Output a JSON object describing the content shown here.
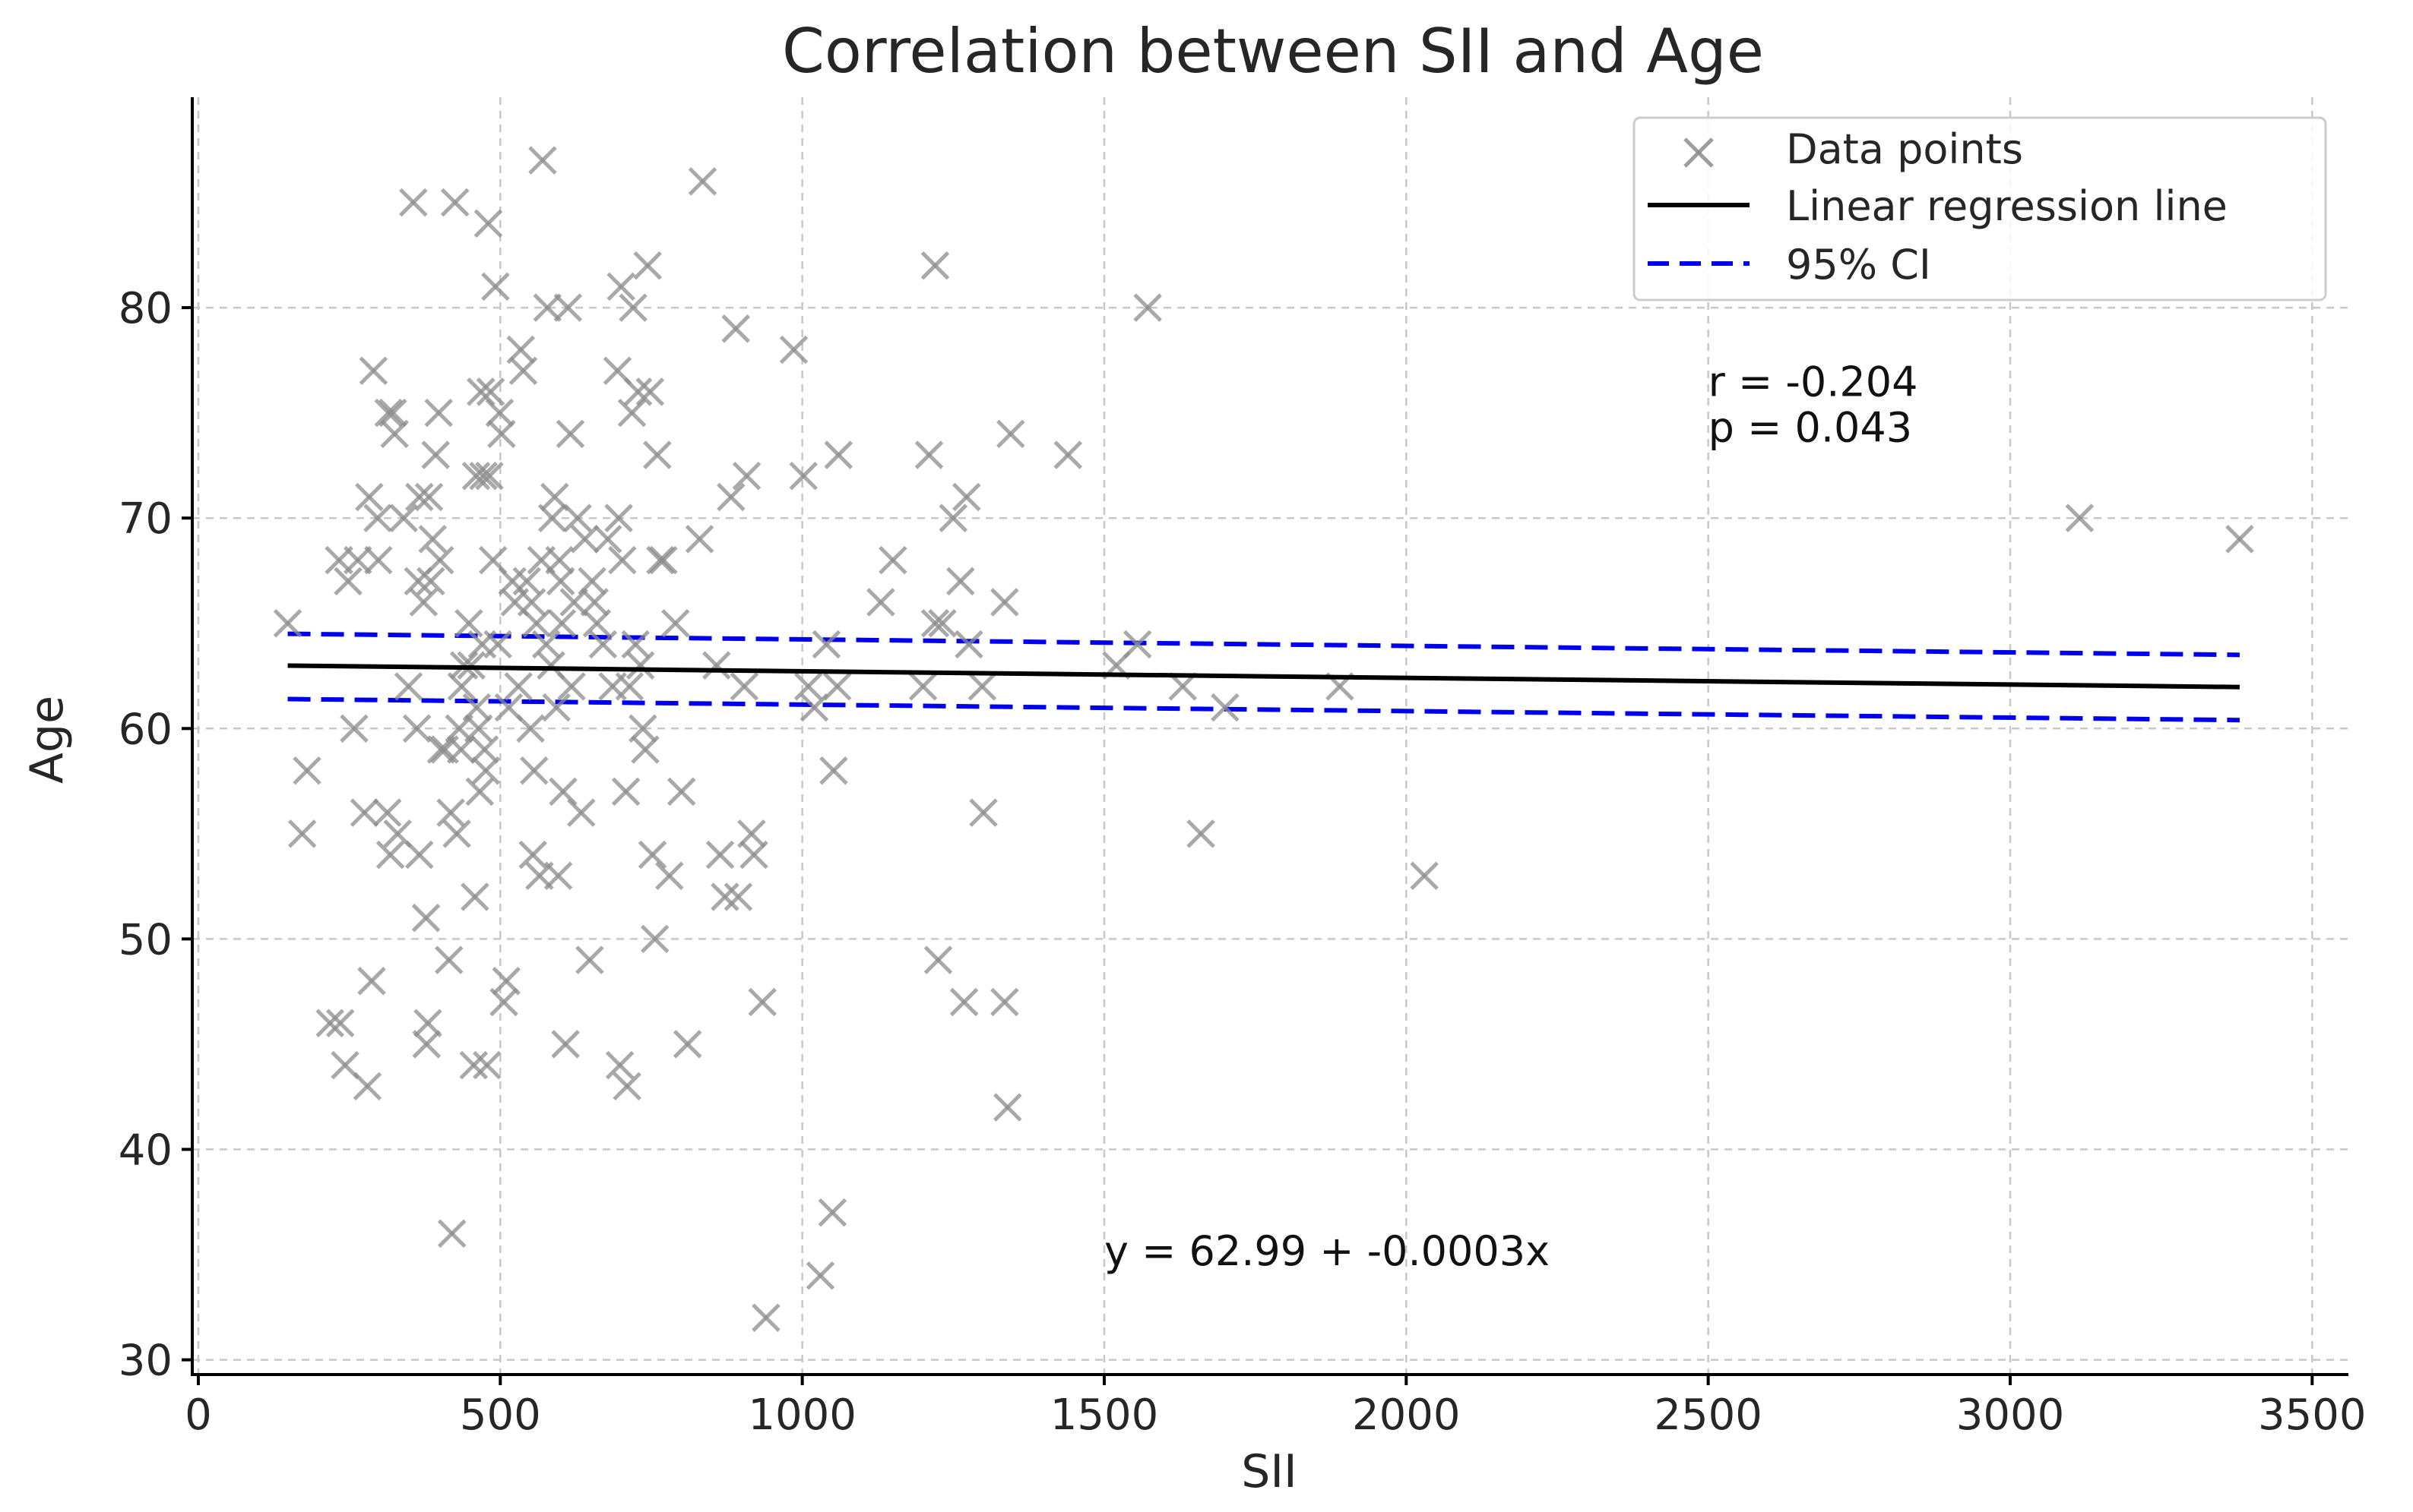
{
  "chart_data": {
    "type": "scatter",
    "title": "Correlation between SII and Age",
    "xlabel": "SII",
    "ylabel": "Age",
    "xlim": [
      -10,
      3560
    ],
    "ylim": [
      29.3,
      90
    ],
    "xticks": [
      0,
      500,
      1000,
      1500,
      2000,
      2500,
      3000,
      3500
    ],
    "yticks": [
      30,
      40,
      50,
      60,
      70,
      80
    ],
    "grid": true,
    "legend": {
      "position": "top-right",
      "entries": [
        "Data points",
        "Linear regression line",
        "95% CI"
      ]
    },
    "colors": {
      "points": "#8c8c8c",
      "regression": "#000000",
      "ci": "#0000ee"
    },
    "series": [
      {
        "name": "Data points",
        "marker": "x",
        "points": [
          [
            148,
            65
          ],
          [
            172,
            55
          ],
          [
            180,
            58
          ],
          [
            218,
            46
          ],
          [
            233,
            68
          ],
          [
            235,
            46
          ],
          [
            243,
            44
          ],
          [
            248,
            67
          ],
          [
            258,
            60
          ],
          [
            264,
            68
          ],
          [
            275,
            56
          ],
          [
            280,
            43
          ],
          [
            283,
            71
          ],
          [
            287,
            48
          ],
          [
            290,
            77
          ],
          [
            297,
            70
          ],
          [
            298,
            68
          ],
          [
            313,
            56
          ],
          [
            315,
            75
          ],
          [
            318,
            54
          ],
          [
            322,
            75
          ],
          [
            325,
            74
          ],
          [
            330,
            55
          ],
          [
            340,
            70
          ],
          [
            348,
            62
          ],
          [
            356,
            85
          ],
          [
            362,
            60
          ],
          [
            364,
            67
          ],
          [
            366,
            54
          ],
          [
            366,
            71
          ],
          [
            373,
            66
          ],
          [
            377,
            51
          ],
          [
            378,
            45
          ],
          [
            380,
            46
          ],
          [
            382,
            71
          ],
          [
            385,
            67
          ],
          [
            388,
            69
          ],
          [
            393,
            73
          ],
          [
            398,
            75
          ],
          [
            400,
            68
          ],
          [
            402,
            59
          ],
          [
            408,
            59
          ],
          [
            415,
            49
          ],
          [
            418,
            56
          ],
          [
            420,
            36
          ],
          [
            425,
            85
          ],
          [
            428,
            55
          ],
          [
            432,
            60
          ],
          [
            435,
            59
          ],
          [
            436,
            62
          ],
          [
            440,
            63
          ],
          [
            448,
            65
          ],
          [
            452,
            63
          ],
          [
            456,
            44
          ],
          [
            458,
            52
          ],
          [
            460,
            72
          ],
          [
            461,
            61
          ],
          [
            464,
            60
          ],
          [
            466,
            57
          ],
          [
            468,
            76
          ],
          [
            470,
            64
          ],
          [
            472,
            72
          ],
          [
            474,
            59
          ],
          [
            476,
            58
          ],
          [
            478,
            44
          ],
          [
            480,
            84
          ],
          [
            482,
            72
          ],
          [
            484,
            76
          ],
          [
            488,
            68
          ],
          [
            492,
            81
          ],
          [
            496,
            64
          ],
          [
            499,
            75
          ],
          [
            502,
            74
          ],
          [
            506,
            47
          ],
          [
            510,
            48
          ],
          [
            514,
            61
          ],
          [
            520,
            67
          ],
          [
            524,
            66
          ],
          [
            530,
            62
          ],
          [
            534,
            78
          ],
          [
            538,
            77
          ],
          [
            544,
            67
          ],
          [
            550,
            60
          ],
          [
            552,
            66
          ],
          [
            554,
            54
          ],
          [
            556,
            58
          ],
          [
            560,
            65
          ],
          [
            565,
            53
          ],
          [
            568,
            68
          ],
          [
            570,
            87
          ],
          [
            576,
            64
          ],
          [
            578,
            80
          ],
          [
            584,
            63
          ],
          [
            586,
            70
          ],
          [
            590,
            71
          ],
          [
            593,
            61
          ],
          [
            596,
            53
          ],
          [
            598,
            68
          ],
          [
            600,
            67
          ],
          [
            602,
            65
          ],
          [
            604,
            57
          ],
          [
            608,
            45
          ],
          [
            612,
            80
          ],
          [
            616,
            74
          ],
          [
            618,
            62
          ],
          [
            622,
            66
          ],
          [
            628,
            70
          ],
          [
            634,
            56
          ],
          [
            640,
            69
          ],
          [
            648,
            49
          ],
          [
            652,
            67
          ],
          [
            656,
            66
          ],
          [
            660,
            65
          ],
          [
            670,
            64
          ],
          [
            678,
            69
          ],
          [
            686,
            62
          ],
          [
            694,
            77
          ],
          [
            696,
            70
          ],
          [
            698,
            44
          ],
          [
            700,
            81
          ],
          [
            702,
            68
          ],
          [
            708,
            57
          ],
          [
            710,
            43
          ],
          [
            714,
            62
          ],
          [
            718,
            75
          ],
          [
            720,
            80
          ],
          [
            724,
            64
          ],
          [
            728,
            76
          ],
          [
            732,
            63
          ],
          [
            736,
            60
          ],
          [
            740,
            59
          ],
          [
            744,
            82
          ],
          [
            748,
            76
          ],
          [
            752,
            54
          ],
          [
            756,
            50
          ],
          [
            760,
            73
          ],
          [
            765,
            68
          ],
          [
            770,
            68
          ],
          [
            780,
            53
          ],
          [
            790,
            65
          ],
          [
            800,
            57
          ],
          [
            810,
            45
          ],
          [
            830,
            69
          ],
          [
            835,
            86
          ],
          [
            858,
            63
          ],
          [
            864,
            54
          ],
          [
            872,
            52
          ],
          [
            882,
            71
          ],
          [
            890,
            79
          ],
          [
            894,
            52
          ],
          [
            904,
            62
          ],
          [
            908,
            72
          ],
          [
            916,
            55
          ],
          [
            920,
            54
          ],
          [
            934,
            47
          ],
          [
            940,
            32
          ],
          [
            986,
            78
          ],
          [
            1002,
            72
          ],
          [
            1010,
            62
          ],
          [
            1020,
            61
          ],
          [
            1030,
            34
          ],
          [
            1040,
            64
          ],
          [
            1050,
            37
          ],
          [
            1052,
            58
          ],
          [
            1058,
            62
          ],
          [
            1060,
            73
          ],
          [
            1130,
            66
          ],
          [
            1150,
            68
          ],
          [
            1200,
            62
          ],
          [
            1210,
            73
          ],
          [
            1220,
            82
          ],
          [
            1220,
            65
          ],
          [
            1225,
            49
          ],
          [
            1232,
            65
          ],
          [
            1250,
            70
          ],
          [
            1262,
            67
          ],
          [
            1268,
            47
          ],
          [
            1272,
            71
          ],
          [
            1276,
            64
          ],
          [
            1298,
            62
          ],
          [
            1300,
            56
          ],
          [
            1335,
            66
          ],
          [
            1335,
            47
          ],
          [
            1340,
            42
          ],
          [
            1345,
            74
          ],
          [
            1440,
            73
          ],
          [
            1520,
            63
          ],
          [
            1555,
            64
          ],
          [
            1572,
            80
          ],
          [
            1630,
            62
          ],
          [
            1660,
            55
          ],
          [
            1700,
            61
          ],
          [
            1890,
            62
          ],
          [
            2030,
            53
          ],
          [
            3115,
            70
          ],
          [
            3380,
            69
          ]
        ]
      },
      {
        "name": "Linear regression line",
        "style": "solid",
        "x": [
          148,
          3380
        ],
        "y": [
          62.99,
          61.97
        ]
      },
      {
        "name": "95% CI",
        "style": "dashed",
        "upper": {
          "x": [
            148,
            3380
          ],
          "y": [
            64.5,
            63.5
          ]
        },
        "lower": {
          "x": [
            148,
            3380
          ],
          "y": [
            61.4,
            60.4
          ]
        }
      }
    ],
    "annotations": {
      "r_text": "r = -0.204",
      "p_text": "p = 0.043",
      "r_at": [
        2500,
        75.8
      ],
      "equation": "y = 62.99 + -0.0003x",
      "equation_at": [
        1500,
        34.5
      ]
    }
  }
}
